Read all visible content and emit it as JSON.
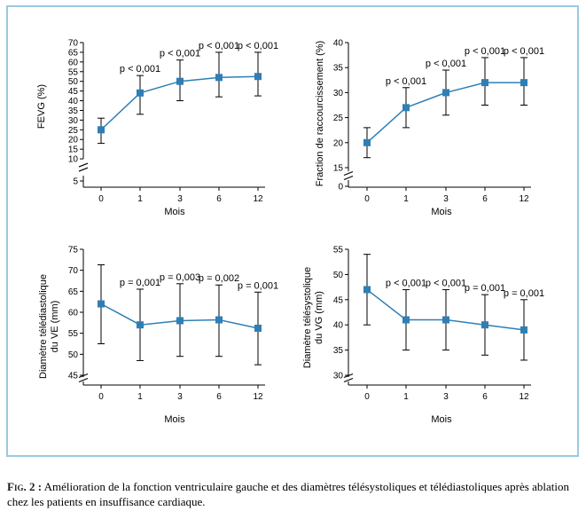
{
  "caption": {
    "label": "Fig. 2 :",
    "text": "Amélioration de la fonction ventriculaire gauche et des diamètres télésystoliques et télédiastoliques après ablation chez les patients en insuffisance cardiaque."
  },
  "colors": {
    "series": "#2f7fb5",
    "frame": "#9cc9df",
    "axis": "#000000"
  },
  "chart_data": [
    {
      "type": "line",
      "categories": [
        "0",
        "1",
        "3",
        "6",
        "12"
      ],
      "xlabel": "Mois",
      "ylabel": "FEVG (%)",
      "ylim": [
        5,
        70
      ],
      "axis_break": true,
      "yticks": [
        5,
        10,
        15,
        20,
        25,
        30,
        35,
        40,
        45,
        50,
        55,
        60,
        65,
        70
      ],
      "values": [
        25,
        44,
        50,
        52,
        52.5
      ],
      "error_low": [
        18,
        33,
        40,
        42,
        42.5
      ],
      "error_high": [
        31,
        53,
        61,
        65,
        65
      ],
      "annotations": [
        "",
        "p < 0,001",
        "p < 0,001",
        "p < 0,001",
        "p < 0,001"
      ]
    },
    {
      "type": "line",
      "categories": [
        "0",
        "1",
        "3",
        "6",
        "12"
      ],
      "xlabel": "Mois",
      "ylabel": "Fraction de raccourcissement (%)",
      "ylim": [
        0,
        40
      ],
      "axis_break": true,
      "yticks": [
        0,
        15,
        20,
        25,
        30,
        35,
        40
      ],
      "values": [
        20,
        27,
        30,
        32,
        32
      ],
      "error_low": [
        17,
        23,
        25.5,
        27.5,
        27.5
      ],
      "error_high": [
        23,
        31,
        34.5,
        37,
        37
      ],
      "annotations": [
        "",
        "p < 0,001",
        "p < 0,001",
        "p < 0,001",
        "p < 0,001"
      ]
    },
    {
      "type": "line",
      "categories": [
        "0",
        "1",
        "3",
        "6",
        "12"
      ],
      "xlabel": "Mois",
      "ylabel": "Diamètre télédiastolique du VE (mm)",
      "ylim": [
        45,
        75
      ],
      "axis_break": true,
      "yticks": [
        45,
        50,
        55,
        60,
        65,
        70,
        75
      ],
      "values": [
        62,
        57,
        58,
        58.2,
        56.2
      ],
      "error_low": [
        52.5,
        48.5,
        49.5,
        49.5,
        47.5
      ],
      "error_high": [
        71.3,
        65.5,
        66.8,
        66.5,
        64.8
      ],
      "annotations": [
        "",
        "p = 0,001",
        "p = 0,003",
        "p = 0,002",
        "p = 0,001"
      ]
    },
    {
      "type": "line",
      "categories": [
        "0",
        "1",
        "3",
        "6",
        "12"
      ],
      "xlabel": "Mois",
      "ylabel": "Diamètre télésystolique du VG (mm)",
      "ylim": [
        30,
        55
      ],
      "axis_break": true,
      "yticks": [
        30,
        35,
        40,
        45,
        50,
        55
      ],
      "values": [
        47,
        41,
        41,
        40,
        39
      ],
      "error_low": [
        40,
        35,
        35,
        34,
        33
      ],
      "error_high": [
        54,
        47,
        47,
        46,
        45
      ],
      "annotations": [
        "",
        "p < 0,001",
        "p < 0,001",
        "p = 0,001",
        "p = 0,001"
      ]
    }
  ]
}
